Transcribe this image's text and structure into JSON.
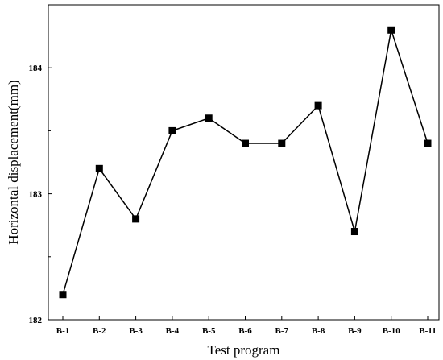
{
  "chart_data": {
    "type": "line",
    "title": "",
    "xlabel": "Test program",
    "ylabel": "Horizontal displacement(mm)",
    "categories": [
      "B-1",
      "B-2",
      "B-3",
      "B-4",
      "B-5",
      "B-6",
      "B-7",
      "B-8",
      "B-9",
      "B-10",
      "B-11"
    ],
    "series": [
      {
        "values": [
          182.2,
          183.2,
          182.8,
          183.5,
          183.6,
          183.4,
          183.4,
          183.7,
          182.7,
          184.3,
          183.4
        ],
        "color": "#000000",
        "marker": "square"
      }
    ],
    "ylim": [
      182,
      184.5
    ],
    "yticks": [
      182,
      183,
      184
    ],
    "grid": false,
    "legend": "none"
  }
}
